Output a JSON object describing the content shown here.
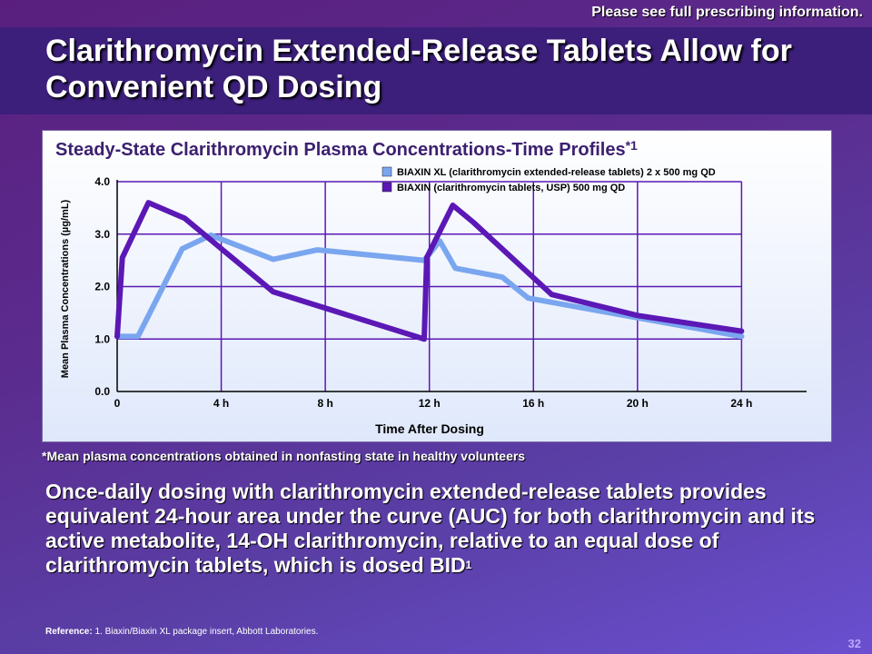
{
  "header": {
    "note": "Please see full prescribing information.",
    "title": "Clarithromycin Extended-Release Tablets Allow for Convenient QD Dosing"
  },
  "chart_data": {
    "type": "line",
    "title": "Steady-State Clarithromycin Plasma Concentrations-Time Profiles",
    "title_sup": "*1",
    "xlabel": "Time After Dosing",
    "ylabel": "Mean Plasma Concentrations (µg/mL)",
    "xlim": [
      0,
      26.5
    ],
    "ylim": [
      0,
      4.0
    ],
    "x_ticks": [
      0,
      4,
      8,
      12,
      16,
      20,
      24
    ],
    "x_tick_labels": [
      "0",
      "4 h",
      "8 h",
      "12 h",
      "16 h",
      "20 h",
      "24 h"
    ],
    "y_ticks": [
      0,
      1,
      2,
      3,
      4
    ],
    "y_tick_labels": [
      "0.0",
      "1.0",
      "2.0",
      "3.0",
      "4.0"
    ],
    "grid": true,
    "legend_position": "top-right",
    "series": [
      {
        "name": "BIAXIN XL (clarithromycin extended-release tablets) 2 x 500 mg QD",
        "color": "#7aa6ef",
        "points": [
          [
            0,
            1.05
          ],
          [
            0.8,
            1.05
          ],
          [
            2.5,
            2.72
          ],
          [
            3.6,
            2.98
          ],
          [
            6,
            2.52
          ],
          [
            7.7,
            2.7
          ],
          [
            11.8,
            2.5
          ],
          [
            12.4,
            2.87
          ],
          [
            13,
            2.35
          ],
          [
            14.8,
            2.18
          ],
          [
            15.8,
            1.78
          ],
          [
            24,
            1.05
          ]
        ]
      },
      {
        "name": "BIAXIN (clarithromycin tablets, USP) 500 mg QD",
        "color": "#5b18b5",
        "points": [
          [
            0,
            1.05
          ],
          [
            0.2,
            2.55
          ],
          [
            1.2,
            3.6
          ],
          [
            2.6,
            3.3
          ],
          [
            6,
            1.9
          ],
          [
            11.8,
            1.0
          ],
          [
            11.9,
            2.55
          ],
          [
            12.9,
            3.55
          ],
          [
            13.7,
            3.22
          ],
          [
            16.7,
            1.85
          ],
          [
            20,
            1.45
          ],
          [
            24,
            1.15
          ]
        ]
      }
    ]
  },
  "footnote": "*Mean plasma concentrations obtained in nonfasting state in healthy volunteers",
  "body": {
    "text": "Once-daily dosing with clarithromycin extended-release tablets provides equivalent 24-hour area under the curve (AUC) for both clarithromycin and its active metabolite, 14-OH clarithromycin, relative to an equal dose of clarithromycin tablets, which is dosed BID",
    "sup": "1"
  },
  "reference": {
    "label": "Reference:",
    "text": " 1. Biaxin/Biaxin XL package insert, Abbott Laboratories."
  },
  "page_number": "32"
}
